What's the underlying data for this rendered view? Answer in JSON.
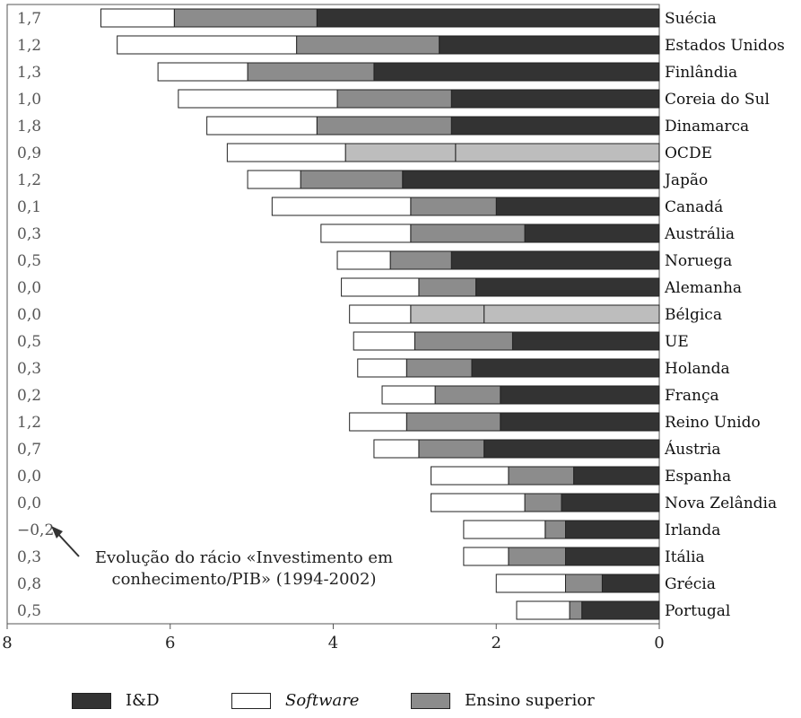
{
  "chart_data": {
    "type": "bar",
    "orientation": "horizontal-stacked",
    "categories": [
      "Suécia",
      "Estados Unidos",
      "Finlândia",
      "Coreia do Sul",
      "Dinamarca",
      "OCDE",
      "Japão",
      "Canadá",
      "Austrália",
      "Noruega",
      "Alemanha",
      "Bélgica",
      "UE",
      "Holanda",
      "França",
      "Reino Unido",
      "Áustria",
      "Espanha",
      "Nova Zelândia",
      "Irlanda",
      "Itália",
      "Grécia",
      "Portugal"
    ],
    "left_values": [
      "1,7",
      "1,2",
      "1,3",
      "1,0",
      "1,8",
      "0,9",
      "1,2",
      "0,1",
      "0,3",
      "0,5",
      "0,0",
      "0,0",
      "0,5",
      "0,3",
      "0,2",
      "1,2",
      "0,7",
      "0,0",
      "0,0",
      "−0,2",
      "0,3",
      "0,8",
      "0,5"
    ],
    "series": [
      {
        "name": "I&D",
        "color": "#333333",
        "values": [
          4.2,
          2.7,
          3.5,
          2.55,
          2.55,
          2.5,
          3.15,
          2.0,
          1.65,
          2.55,
          2.25,
          2.15,
          1.8,
          2.3,
          1.95,
          1.95,
          2.15,
          1.05,
          1.2,
          1.15,
          1.15,
          0.7,
          0.95
        ]
      },
      {
        "name": "Ensino superior",
        "color": "#8c8c8c",
        "values": [
          1.75,
          1.75,
          1.55,
          1.4,
          1.65,
          1.35,
          1.25,
          1.05,
          1.4,
          0.75,
          0.7,
          0.9,
          1.2,
          0.8,
          0.8,
          1.15,
          0.8,
          0.8,
          0.45,
          0.25,
          0.7,
          0.45,
          0.15
        ]
      },
      {
        "name": "Software",
        "color": "#ffffff",
        "values": [
          0.9,
          2.2,
          1.1,
          1.95,
          1.35,
          1.45,
          0.65,
          1.7,
          1.1,
          0.65,
          0.95,
          0.75,
          0.75,
          0.6,
          0.65,
          0.7,
          0.55,
          0.95,
          1.15,
          1.0,
          0.55,
          0.85,
          0.65
        ]
      }
    ],
    "lighter_rows": {
      "OCDE": "#bdbdbd",
      "Bélgica": "#bdbdbd"
    },
    "x_ticks": [
      8,
      6,
      4,
      2,
      0
    ],
    "xlim": [
      8,
      0
    ],
    "annotation": "Evolução do rácio «Investimento em conhecimento/PIB» (1994-2002)",
    "annotation_lines": [
      "Evolução do rácio «Investimento em",
      "conhecimento/PIB» (1994-2002)"
    ],
    "legend": [
      {
        "label": "I&D",
        "color": "#333333"
      },
      {
        "label": "Software",
        "color": "#ffffff"
      },
      {
        "label": "Ensino superior",
        "color": "#8c8c8c"
      }
    ]
  }
}
